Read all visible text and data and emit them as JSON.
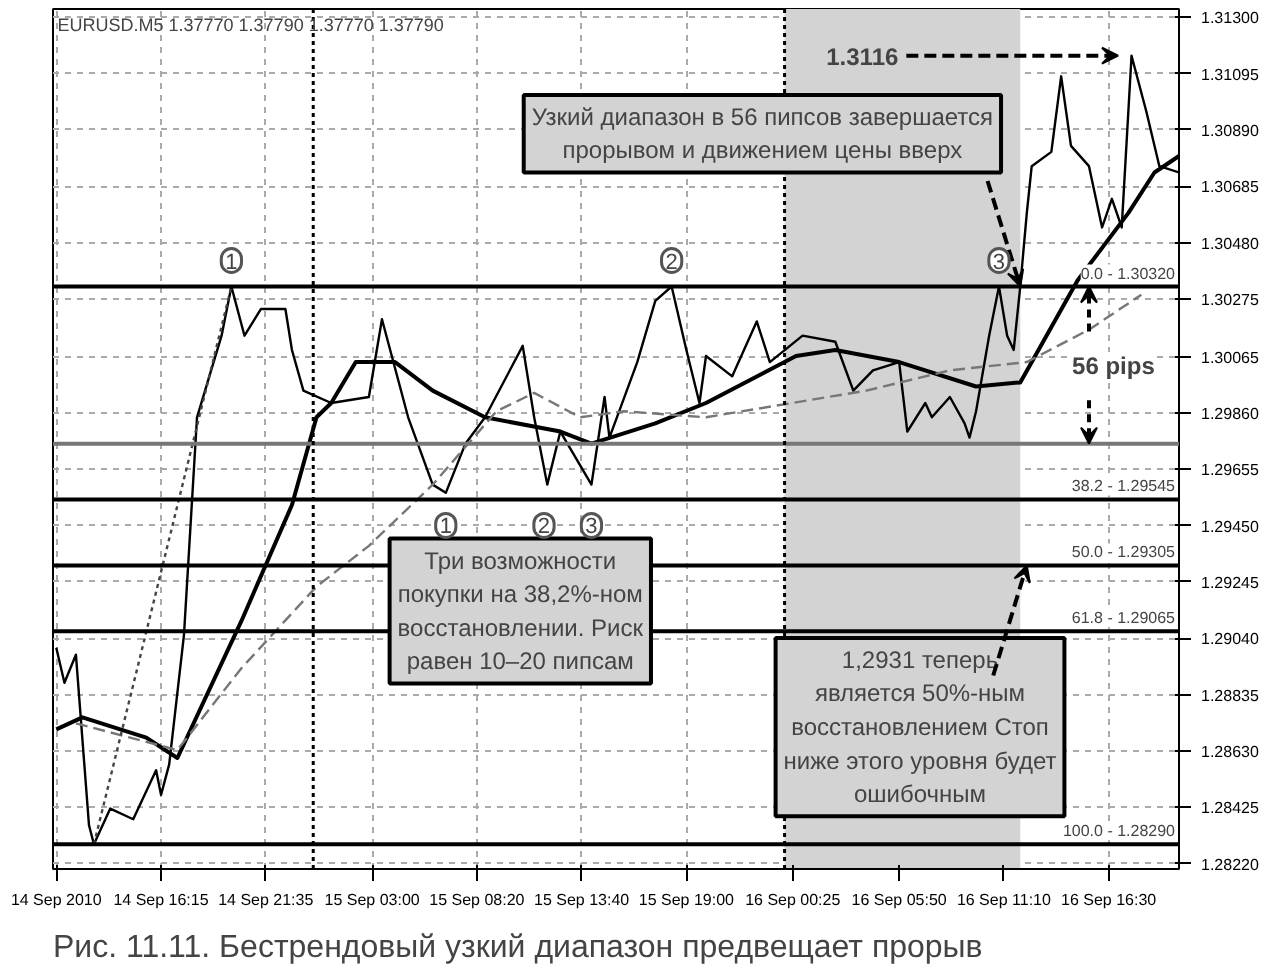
{
  "chart_data": {
    "type": "line",
    "title": "Рис. 11.11. Бестрендовый узкий диапазон предвещает прорыв",
    "xlim": [
      "2010-09-14T10:45",
      "2010-09-16T20:05"
    ],
    "ylim": [
      1.282,
      1.3133
    ],
    "xticks": [
      {
        "value": "2010-09-14T10:55",
        "label": "14 Sep 2010"
      },
      {
        "value": "2010-09-14T16:15",
        "label": "14 Sep 16:15"
      },
      {
        "value": "2010-09-14T21:35",
        "label": "14 Sep 21:35"
      },
      {
        "value": "2010-09-15T03:00",
        "label": "15 Sep 03:00"
      },
      {
        "value": "2010-09-15T08:20",
        "label": "15 Sep 08:20"
      },
      {
        "value": "2010-09-15T13:40",
        "label": "15 Sep 13:40"
      },
      {
        "value": "2010-09-15T19:00",
        "label": "15 Sep 19:00"
      },
      {
        "value": "2010-09-16T00:25",
        "label": "16 Sep 00:25"
      },
      {
        "value": "2010-09-16T05:50",
        "label": "16 Sep 05:50"
      },
      {
        "value": "2010-09-16T11:10",
        "label": "16 Sep 11:10"
      },
      {
        "value": "2010-09-16T16:30",
        "label": "16 Sep 16:30"
      }
    ],
    "yticks": [
      {
        "value": 1.2822,
        "label": "1.28220"
      },
      {
        "value": 1.28425,
        "label": "1.28425"
      },
      {
        "value": 1.2863,
        "label": "1.28630"
      },
      {
        "value": 1.28835,
        "label": "1.28835"
      },
      {
        "value": 1.2904,
        "label": "1.29040"
      },
      {
        "value": 1.29245,
        "label": "1.29245"
      },
      {
        "value": 1.2945,
        "label": "1.29450"
      },
      {
        "value": 1.29655,
        "label": "1.29655"
      },
      {
        "value": 1.2986,
        "label": "1.29860"
      },
      {
        "value": 1.30065,
        "label": "1.30065"
      },
      {
        "value": 1.30275,
        "label": "1.30275"
      },
      {
        "value": 1.3048,
        "label": "1.30480"
      },
      {
        "value": 1.30685,
        "label": "1.30685"
      },
      {
        "value": 1.3089,
        "label": "1.30890"
      },
      {
        "value": 1.31095,
        "label": "1.31095"
      },
      {
        "value": 1.313,
        "label": "1.31300"
      }
    ],
    "grid": true,
    "series": [
      {
        "color": "#000000",
        "line_style": "solid",
        "x": [
          "2010-09-14T10:55",
          "2010-09-14T11:20",
          "2010-09-14T11:55",
          "2010-09-14T12:35",
          "2010-09-14T12:50",
          "2010-09-14T13:40",
          "2010-09-14T14:50",
          "2010-09-14T16:00",
          "2010-09-14T16:15",
          "2010-09-14T16:40",
          "2010-09-14T17:25",
          "2010-09-14T18:05",
          "2010-09-14T19:20",
          "2010-09-14T19:50",
          "2010-09-14T20:30",
          "2010-09-14T21:20",
          "2010-09-14T22:35",
          "2010-09-14T22:55",
          "2010-09-14T23:30",
          "2010-09-15T00:55",
          "2010-09-15T02:50",
          "2010-09-15T03:30",
          "2010-09-15T04:50",
          "2010-09-15T06:05",
          "2010-09-15T06:45",
          "2010-09-15T07:45",
          "2010-09-15T08:45",
          "2010-09-15T10:40",
          "2010-09-15T11:15",
          "2010-09-15T11:55",
          "2010-09-15T12:35",
          "2010-09-15T14:10",
          "2010-09-15T14:50",
          "2010-09-15T15:05",
          "2010-09-15T16:30",
          "2010-09-15T17:25",
          "2010-09-15T18:15",
          "2010-09-15T19:00",
          "2010-09-15T19:40",
          "2010-09-15T20:00",
          "2010-09-15T21:20",
          "2010-09-15T22:35",
          "2010-09-15T23:15",
          "2010-09-16T00:55",
          "2010-09-16T02:35",
          "2010-09-16T03:30",
          "2010-09-16T04:30",
          "2010-09-16T05:50",
          "2010-09-16T06:15",
          "2010-09-16T07:10",
          "2010-09-16T07:30",
          "2010-09-16T08:25",
          "2010-09-16T09:10",
          "2010-09-16T09:25",
          "2010-09-16T09:45",
          "2010-09-16T10:25",
          "2010-09-16T10:55",
          "2010-09-16T11:20",
          "2010-09-16T11:40",
          "2010-09-16T12:00",
          "2010-09-16T12:20",
          "2010-09-16T12:35",
          "2010-09-16T13:35",
          "2010-09-16T14:05",
          "2010-09-16T14:35",
          "2010-09-16T15:30",
          "2010-09-16T16:10",
          "2010-09-16T16:40",
          "2010-09-16T17:10",
          "2010-09-16T17:40",
          "2010-09-16T18:25",
          "2010-09-16T19:05",
          "2010-09-16T20:05"
        ],
        "values": [
          1.29005,
          1.28878,
          1.2898,
          1.28359,
          1.2829,
          1.2842,
          1.28381,
          1.28559,
          1.2847,
          1.28581,
          1.2905,
          1.29844,
          1.30141,
          1.3032,
          1.30141,
          1.30238,
          1.30238,
          1.30089,
          1.29941,
          1.29896,
          1.29918,
          1.30201,
          1.29844,
          1.29599,
          1.29569,
          1.29748,
          1.29844,
          1.30104,
          1.29844,
          1.29599,
          1.29792,
          1.29599,
          1.29918,
          1.2977,
          1.30045,
          1.30268,
          1.3032,
          1.30089,
          1.29896,
          1.30067,
          1.29993,
          1.30193,
          1.30045,
          1.30141,
          1.30119,
          1.29941,
          1.30015,
          1.30045,
          1.29792,
          1.29896,
          1.29844,
          1.29918,
          1.29822,
          1.2977,
          1.29866,
          1.30141,
          1.3032,
          1.30141,
          1.30089,
          1.3032,
          1.30587,
          1.30758,
          1.3081,
          1.31085,
          1.30832,
          1.30758,
          1.30535,
          1.30639,
          1.30535,
          1.3116,
          1.30958,
          1.30758,
          1.30735
        ]
      },
      {
        "color": "#000000",
        "line_style": "solid",
        "x": [
          "2010-09-14T10:55",
          "2010-09-14T12:15",
          "2010-09-14T15:30",
          "2010-09-14T17:05",
          "2010-09-14T20:20",
          "2010-09-14T22:55",
          "2010-09-15T00:10",
          "2010-09-15T00:55",
          "2010-09-15T02:10",
          "2010-09-15T04:10",
          "2010-09-15T06:05",
          "2010-09-15T08:45",
          "2010-09-15T12:35",
          "2010-09-15T14:10",
          "2010-09-15T17:25",
          "2010-09-15T20:00",
          "2010-09-16T00:35",
          "2010-09-16T02:35",
          "2010-09-16T05:50",
          "2010-09-16T09:45",
          "2010-09-16T12:00",
          "2010-09-16T14:55",
          "2010-09-16T17:30",
          "2010-09-16T18:50",
          "2010-09-16T20:05"
        ],
        "values": [
          1.28708,
          1.28752,
          1.28678,
          1.28604,
          1.29101,
          1.29525,
          1.29844,
          1.29896,
          1.30045,
          1.30045,
          1.29941,
          1.29844,
          1.29792,
          1.29748,
          1.29822,
          1.29896,
          1.30067,
          1.30089,
          1.30045,
          1.29956,
          1.29971,
          1.30342,
          1.30587,
          1.30735,
          1.30795
        ]
      },
      {
        "color": "#777777",
        "line_style": "dashed",
        "x": [
          "2010-09-14T11:55",
          "2010-09-14T17:05",
          "2010-09-14T20:20",
          "2010-09-15T00:10",
          "2010-09-15T02:50",
          "2010-09-15T06:05",
          "2010-09-15T09:20",
          "2010-09-15T11:15",
          "2010-09-15T13:35",
          "2010-09-15T15:50",
          "2010-09-15T20:00",
          "2010-09-16T04:10",
          "2010-09-16T08:25",
          "2010-09-16T12:20",
          "2010-09-16T15:30",
          "2010-09-16T18:10"
        ],
        "values": [
          1.2873,
          1.28633,
          1.2893,
          1.29228,
          1.29376,
          1.29599,
          1.29866,
          1.29933,
          1.29844,
          1.29866,
          1.29844,
          1.29941,
          1.30015,
          1.30045,
          1.30163,
          1.3029
        ]
      },
      {
        "color": "#444444",
        "line_style": "dotted",
        "x": [
          "2010-09-14T12:50",
          "2010-09-14T19:50"
        ],
        "values": [
          1.2829,
          1.3032
        ]
      }
    ],
    "ref_lines": [
      {
        "axis": "y",
        "value": 1.3032
      },
      {
        "axis": "y",
        "value": 1.29545
      },
      {
        "axis": "y",
        "value": 1.29305
      },
      {
        "axis": "y",
        "value": 1.29065
      },
      {
        "axis": "y",
        "value": 1.2829
      },
      {
        "axis": "y",
        "value": 1.29748,
        "color": "#777777"
      },
      {
        "axis": "x",
        "value": "2010-09-15",
        "line_style": "dotted"
      },
      {
        "axis": "x",
        "value": "2010-09-16",
        "line_style": "dotted"
      }
    ],
    "bands": [
      {
        "axis": "x",
        "from": "2010-09-16T00:00",
        "to": "2010-09-16T12:00",
        "color": "#d3d3d3"
      }
    ],
    "annotations": [
      "EURUSD.M5  1.37770 1.37790 1.37770 1.37790",
      {
        "text": "Узкий диапазон в 56 пипсов завершается\nпрорывом и движением цены вверх",
        "x": "2010-09-16T12:00",
        "y": 1.3032
      },
      "Три возможности\nпокупки на 38,2%-ном\nвосстановлении. Риск\nравен 10–20 пипсам",
      {
        "text": "1,2931 теперь\nявляется 50%-ным\nвосстановлением Стоп\nниже этого уровня будет\nошибочным",
        "x": "2010-09-16T12:20",
        "y": 1.29305
      },
      {
        "text": "1",
        "x": "2010-09-14T19:50",
        "y": 1.3032
      },
      {
        "text": "2",
        "x": "2010-09-15T18:15",
        "y": 1.3032
      },
      {
        "text": "3",
        "x": "2010-09-16T10:55",
        "y": 1.3032
      },
      {
        "text": "1",
        "x": "2010-09-15T06:45",
        "y": 1.29545
      },
      {
        "text": "2",
        "x": "2010-09-15T11:45",
        "y": 1.29545
      },
      {
        "text": "3",
        "x": "2010-09-15T14:10",
        "y": 1.29545
      },
      {
        "text": "1.3116",
        "x": "2010-09-16T17:40",
        "y": 1.3116
      },
      {
        "text": "56 pips",
        "x": "2010-09-16T15:30",
        "y": 1.3032
      },
      {
        "text": "0.0 - 1.30320",
        "x": "2010-09-16T20:05",
        "y": 1.3032
      },
      {
        "text": "38.2 - 1.29545",
        "x": "2010-09-16T20:05",
        "y": 1.29545
      },
      {
        "text": "50.0 - 1.29305",
        "x": "2010-09-16T20:05",
        "y": 1.29305
      },
      {
        "text": "61.8 - 1.29065",
        "x": "2010-09-16T20:05",
        "y": 1.29065
      },
      {
        "text": "100.0 - 1.28290",
        "x": "2010-09-16T20:05",
        "y": 1.2829
      }
    ]
  }
}
